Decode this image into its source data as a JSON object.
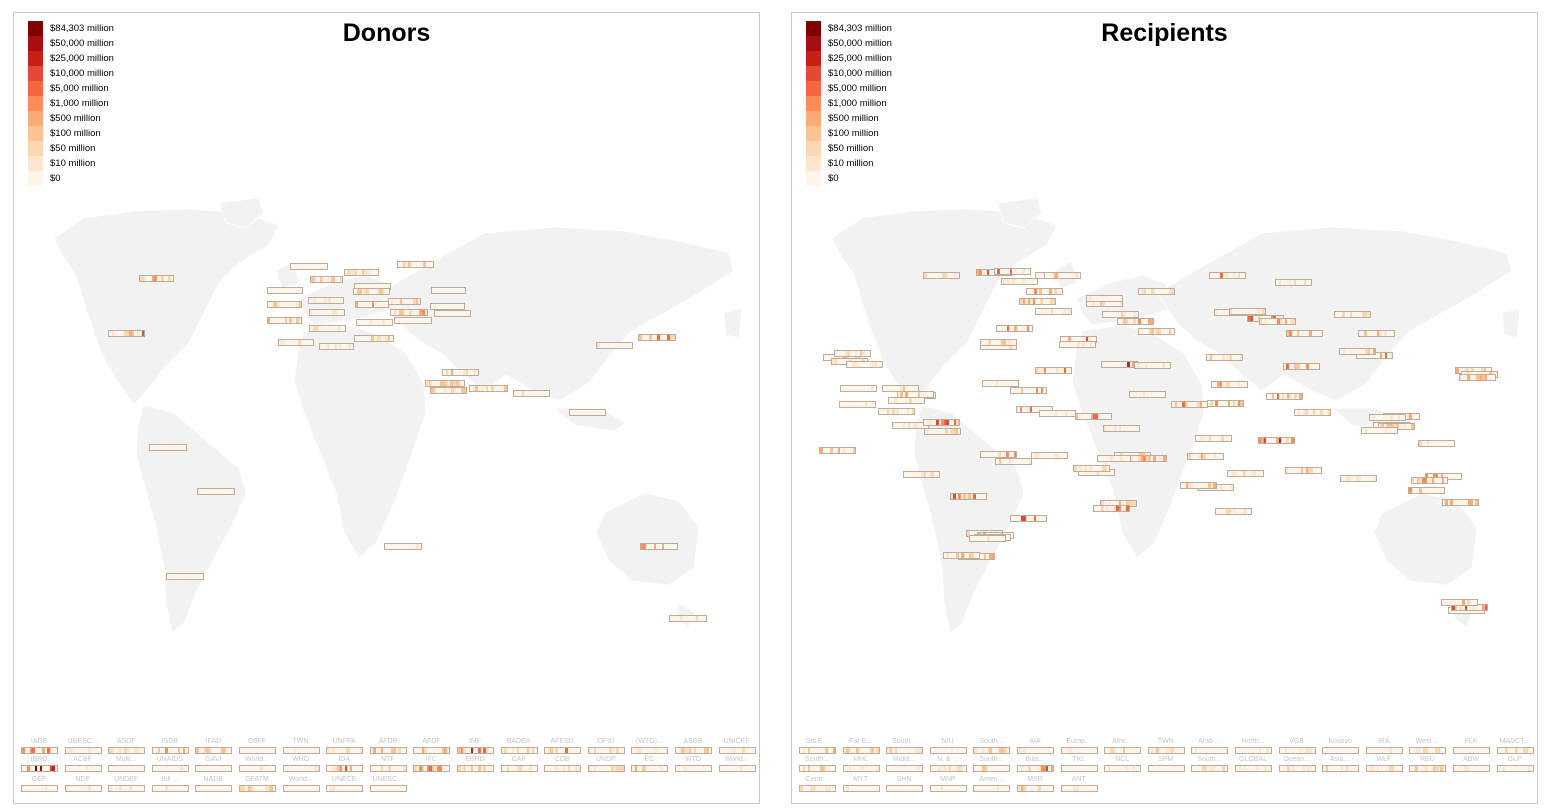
{
  "colors": {
    "scale": [
      "#fff5eb",
      "#fee6ce",
      "#fdd7b0",
      "#fdc491",
      "#fdaa75",
      "#fc8d59",
      "#f4683f",
      "#e34a33",
      "#c52114",
      "#a50f0f",
      "#7f0000"
    ],
    "land": "#f2f2f2",
    "border": "#ffffff",
    "strip_border": "#b9ae9e"
  },
  "legend": {
    "labels": [
      "$84,303 million",
      "$50,000 million",
      "$25,000 million",
      "$10,000 million",
      "$5,000 million",
      "$1,000 million",
      "$500 million",
      "$100 million",
      "$50 million",
      "$10 million",
      "$0"
    ]
  },
  "donors": {
    "title": "Donors",
    "organizations": [
      "IADB",
      "UNESC...",
      "ASDF",
      "ISDB",
      "IFAD",
      "CBFF",
      "TWN",
      "UNFPA",
      "AFDB",
      "AFDF",
      "IMF",
      "BADEA",
      "AFESD",
      "OFID",
      "(WTO)...",
      "ASDB",
      "UNICEF",
      "IBRD",
      "ACBF",
      "Multi...",
      "UNAIDS",
      "GAVI",
      "World...",
      "WHO",
      "IDA",
      "NTF",
      "IFC",
      "EBRD",
      "CAF",
      "CDB",
      "UNDP",
      "EC",
      "WTO",
      "World...",
      "GEF",
      "NDF",
      "UNDEF",
      "Bill ...",
      "NADB",
      "GFATM",
      "World...",
      "UNECE",
      "UNESC..."
    ],
    "org_intensity": [
      5,
      1,
      2,
      5,
      3,
      1,
      1,
      2,
      4,
      5,
      9,
      3,
      5,
      3,
      1,
      3,
      2,
      8,
      1,
      1,
      1,
      1,
      1,
      1,
      8,
      2,
      5,
      3,
      2,
      2,
      2,
      5,
      1,
      1,
      1,
      1,
      1,
      1,
      1,
      3,
      1,
      1,
      1
    ]
  },
  "recipients": {
    "title": "Recipients",
    "organizations": [
      "Sts E...",
      "Far E...",
      "South...",
      "NIU",
      "South...",
      "AIA",
      "Europ...",
      "Afric...",
      "TWN",
      "Arab ...",
      "North...",
      "VGB",
      "Kosovo",
      "IRA",
      "West ...",
      "FLK",
      "MADCT...",
      "South...",
      "MHL",
      "Middl...",
      "N. & ...",
      "South...",
      "Bilat...",
      "TKL",
      "NCL",
      "SPM",
      "South...",
      "GLOBAL",
      "Ocean...",
      "Asia,...",
      "WLF",
      "REU",
      "ABW",
      "GLP",
      "Centr...",
      "MYT",
      "SHN",
      "MNP",
      "Ameri...",
      "MSR",
      "ANT"
    ],
    "org_intensity": [
      4,
      3,
      3,
      1,
      3,
      1,
      1,
      3,
      3,
      1,
      1,
      1,
      1,
      1,
      2,
      1,
      2,
      3,
      1,
      1,
      2,
      3,
      7,
      1,
      1,
      1,
      3,
      2,
      2,
      3,
      2,
      3,
      1,
      1,
      2,
      1,
      1,
      1,
      3,
      4,
      1
    ]
  }
}
